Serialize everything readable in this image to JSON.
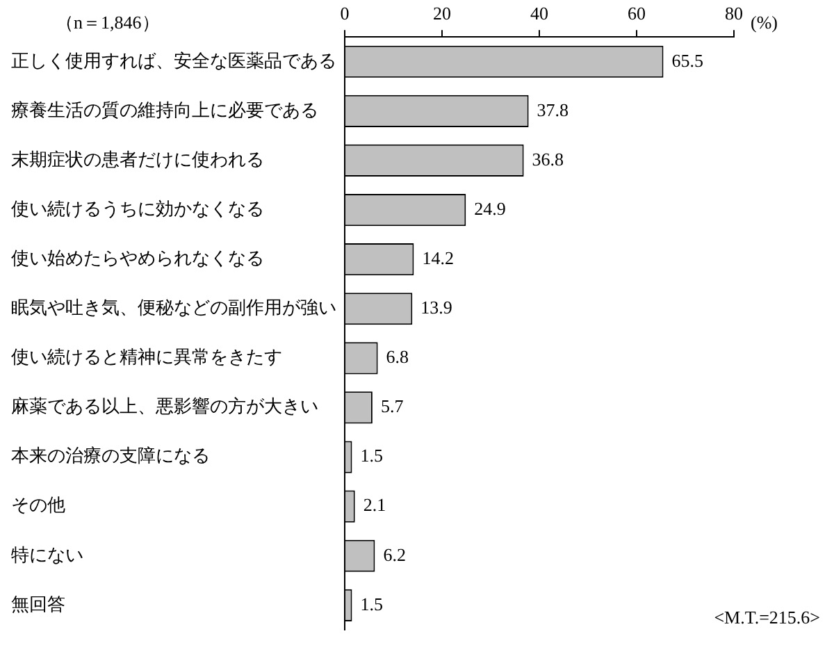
{
  "chart_data": {
    "type": "bar",
    "orientation": "horizontal",
    "xlabel": "(%)",
    "categories": [
      "正しく使用すれば、安全な医薬品である",
      "療養生活の質の維持向上に必要である",
      "末期症状の患者だけに使われる",
      "使い続けるうちに効かなくなる",
      "使い始めたらやめられなくなる",
      "眠気や吐き気、便秘などの副作用が強い",
      "使い続けると精神に異常をきたす",
      "麻薬である以上、悪影響の方が大きい",
      "本来の治療の支障になる",
      "その他",
      "特にない",
      "無回答"
    ],
    "values": [
      65.5,
      37.8,
      36.8,
      24.9,
      14.2,
      13.9,
      6.8,
      5.7,
      1.5,
      2.1,
      6.2,
      1.5
    ],
    "color": "#c0c0c0",
    "data_labels": true,
    "grid": false,
    "legend": false,
    "xlim": [
      0,
      80
    ],
    "xticks": [
      0,
      20,
      40,
      60,
      80
    ],
    "annotations": [
      "（n＝1,846）",
      "<M.T.=215.6>"
    ]
  }
}
